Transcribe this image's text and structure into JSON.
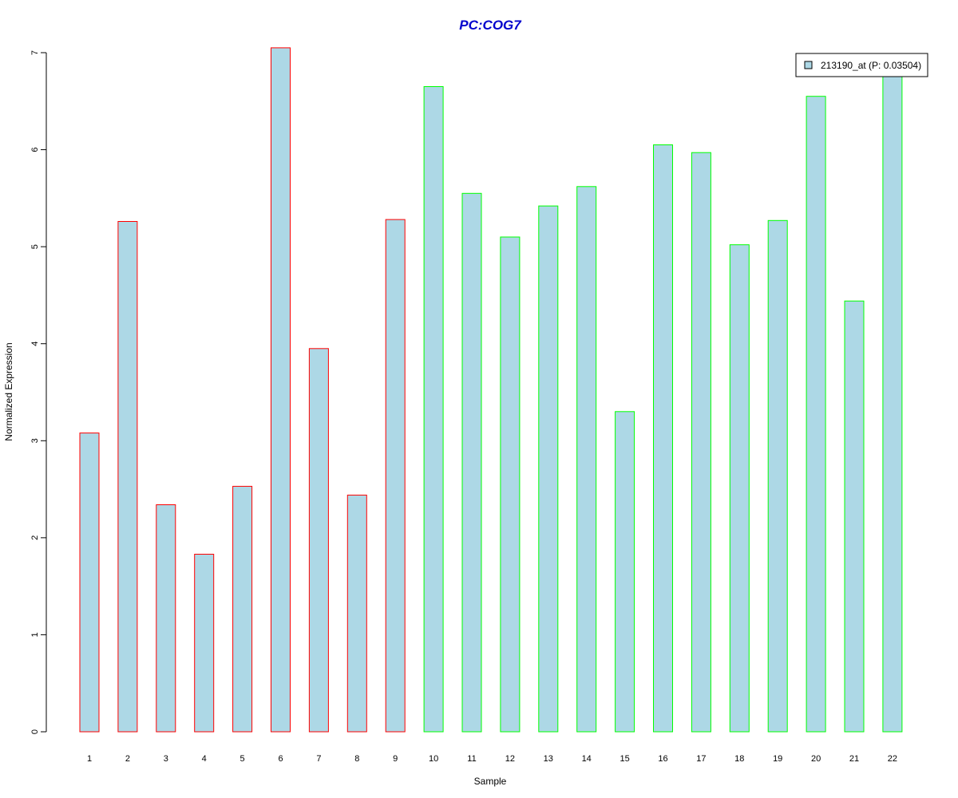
{
  "chart_data": {
    "type": "bar",
    "title": "PC:COG7",
    "xlabel": "Sample",
    "ylabel": "Normalized Expression",
    "categories": [
      "1",
      "2",
      "3",
      "4",
      "5",
      "6",
      "7",
      "8",
      "9",
      "10",
      "11",
      "12",
      "13",
      "14",
      "15",
      "16",
      "17",
      "18",
      "19",
      "20",
      "21",
      "22"
    ],
    "series": [
      {
        "name": "213190_at (P: 0.03504)",
        "values": [
          3.08,
          5.26,
          2.34,
          1.83,
          2.53,
          7.05,
          3.95,
          2.44,
          5.28,
          6.65,
          5.55,
          5.1,
          5.42,
          5.62,
          3.3,
          6.05,
          5.97,
          5.02,
          5.27,
          6.55,
          4.44,
          6.85
        ]
      }
    ],
    "group_border_colors": [
      "#ff0000",
      "#ff0000",
      "#ff0000",
      "#ff0000",
      "#ff0000",
      "#ff0000",
      "#ff0000",
      "#ff0000",
      "#ff0000",
      "#00ff00",
      "#00ff00",
      "#00ff00",
      "#00ff00",
      "#00ff00",
      "#00ff00",
      "#00ff00",
      "#00ff00",
      "#00ff00",
      "#00ff00",
      "#00ff00",
      "#00ff00",
      "#00ff00"
    ],
    "ylim": [
      0,
      7
    ],
    "yticks": [
      0,
      1,
      2,
      3,
      4,
      5,
      6,
      7
    ],
    "grid": false,
    "legend_position": "top-right"
  },
  "colors": {
    "bar_fill": "#add8e6",
    "title": "#0000cd",
    "axis": "#000000"
  }
}
